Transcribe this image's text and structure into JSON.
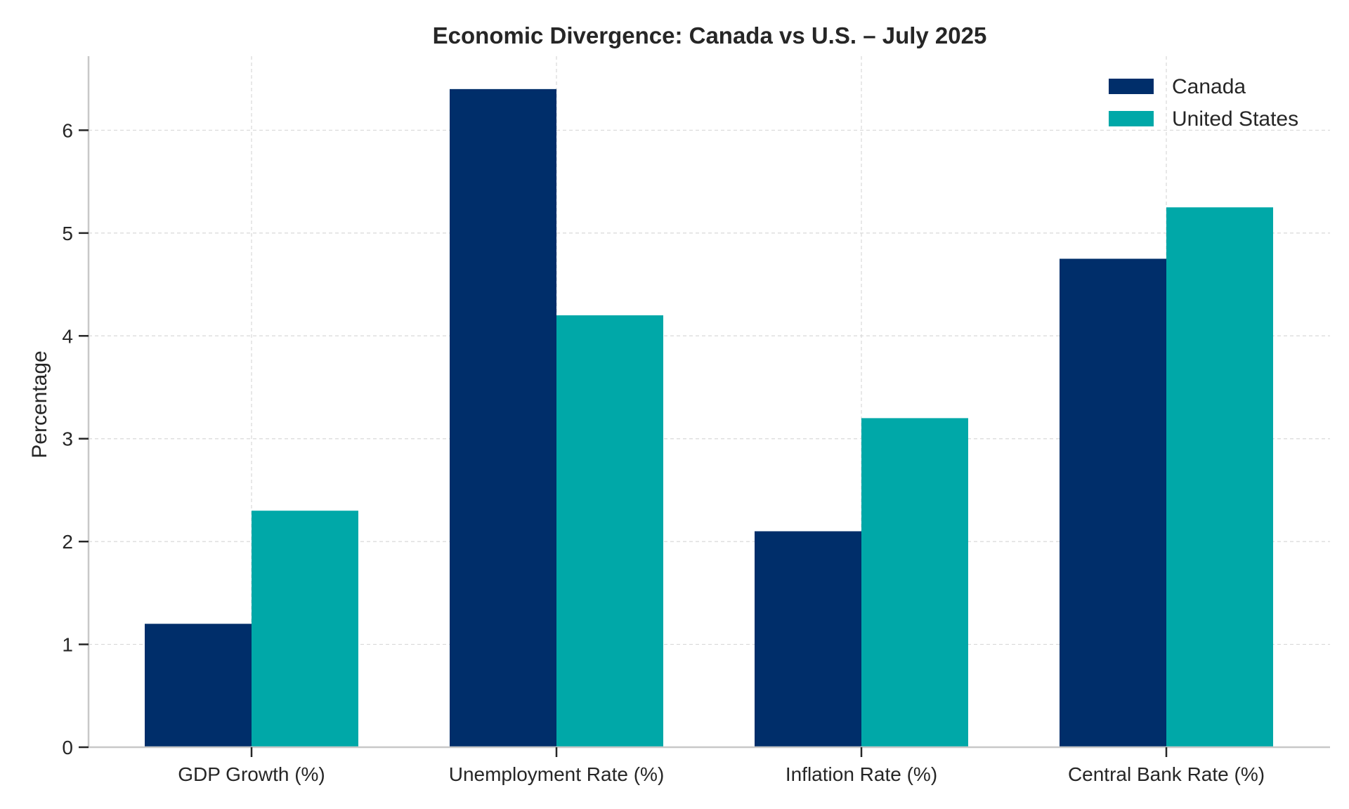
{
  "chart_data": {
    "type": "bar",
    "title": "Economic Divergence: Canada vs U.S. – July 2025",
    "xlabel": "",
    "ylabel": "Percentage",
    "categories": [
      "GDP Growth (%)",
      "Unemployment Rate (%)",
      "Inflation Rate (%)",
      "Central Bank Rate (%)"
    ],
    "series": [
      {
        "name": "Canada",
        "color": "#002e6a",
        "values": [
          1.2,
          6.4,
          2.1,
          4.75
        ]
      },
      {
        "name": "United States",
        "color": "#00a8a8",
        "values": [
          2.3,
          4.2,
          3.2,
          5.25
        ]
      }
    ],
    "yticks": [
      0,
      1,
      2,
      3,
      4,
      5,
      6
    ],
    "ylim": [
      0,
      6.72
    ],
    "grid": true,
    "legend_position": "top-right"
  }
}
